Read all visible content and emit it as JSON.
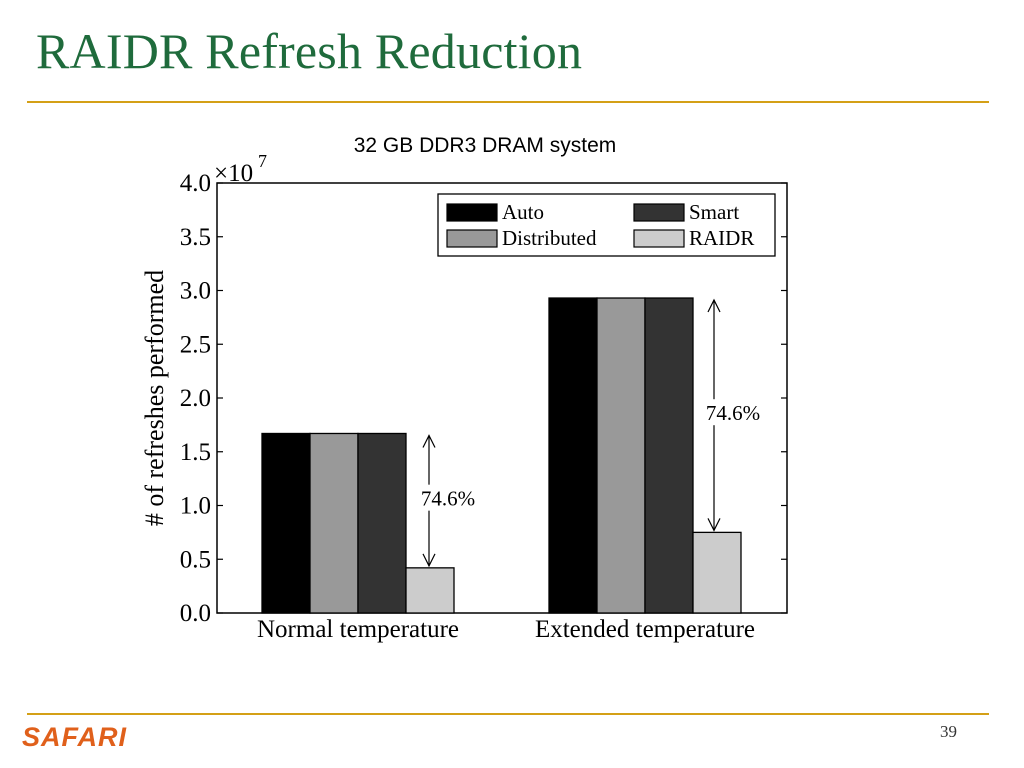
{
  "slide": {
    "title": "RAIDR Refresh Reduction",
    "page_number": "39",
    "footer_logo": "SAFARI"
  },
  "colors": {
    "title": "#1f6b3c",
    "rule": "#d4a017",
    "logo": "#e0601b"
  },
  "chart_data": {
    "type": "bar",
    "title": "32 GB DDR3 DRAM system",
    "xlabel": "",
    "ylabel": "# of refreshes performed",
    "y_multiplier_label": "×10",
    "y_multiplier_exponent": "7",
    "ylim": [
      0,
      4.0
    ],
    "yticks": [
      "0.0",
      "0.5",
      "1.0",
      "1.5",
      "2.0",
      "2.5",
      "3.0",
      "3.5",
      "4.0"
    ],
    "categories": [
      "Normal temperature",
      "Extended temperature"
    ],
    "series": [
      {
        "name": "Auto",
        "values": [
          1.67,
          2.93
        ],
        "color": "#000000"
      },
      {
        "name": "Distributed",
        "values": [
          1.67,
          2.93
        ],
        "color": "#999999"
      },
      {
        "name": "Smart",
        "values": [
          1.67,
          2.93
        ],
        "color": "#333333"
      },
      {
        "name": "RAIDR",
        "values": [
          0.42,
          0.75
        ],
        "color": "#cccccc"
      }
    ],
    "legend": {
      "placement": "top-right",
      "order": [
        "Auto",
        "Smart",
        "Distributed",
        "RAIDR"
      ]
    },
    "annotations": [
      "74.6%",
      "74.6%"
    ]
  }
}
